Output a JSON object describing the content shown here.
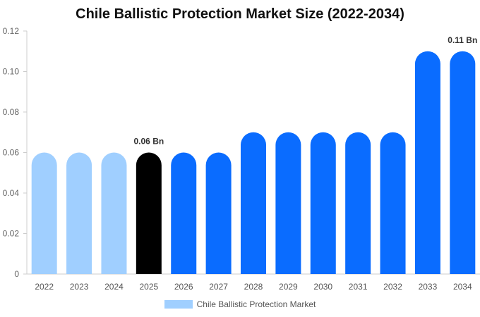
{
  "chart_data": {
    "type": "bar",
    "title": "Chile Ballistic Protection Market Size (2022-2034)",
    "categories": [
      "2022",
      "2023",
      "2024",
      "2025",
      "2026",
      "2027",
      "2028",
      "2029",
      "2030",
      "2031",
      "2032",
      "2033",
      "2034"
    ],
    "series": [
      {
        "name": "Chile Ballistic Protection Market",
        "values": [
          0.06,
          0.06,
          0.06,
          0.06,
          0.06,
          0.06,
          0.07,
          0.07,
          0.07,
          0.07,
          0.07,
          0.11,
          0.11
        ]
      }
    ],
    "bar_colors": [
      "#a0cfff",
      "#a0cfff",
      "#a0cfff",
      "#000000",
      "#0a6cff",
      "#0a6cff",
      "#0a6cff",
      "#0a6cff",
      "#0a6cff",
      "#0a6cff",
      "#0a6cff",
      "#0a6cff",
      "#0a6cff"
    ],
    "data_labels": [
      {
        "category": "2025",
        "text": "0.06 Bn"
      },
      {
        "category": "2034",
        "text": "0.11 Bn"
      }
    ],
    "y_ticks": [
      "0",
      "0.02",
      "0.04",
      "0.06",
      "0.08",
      "0.10",
      "0.12"
    ],
    "ylim": [
      0,
      0.12
    ],
    "xlabel": "",
    "ylabel": "",
    "grid": false,
    "legend_position": "bottom"
  }
}
